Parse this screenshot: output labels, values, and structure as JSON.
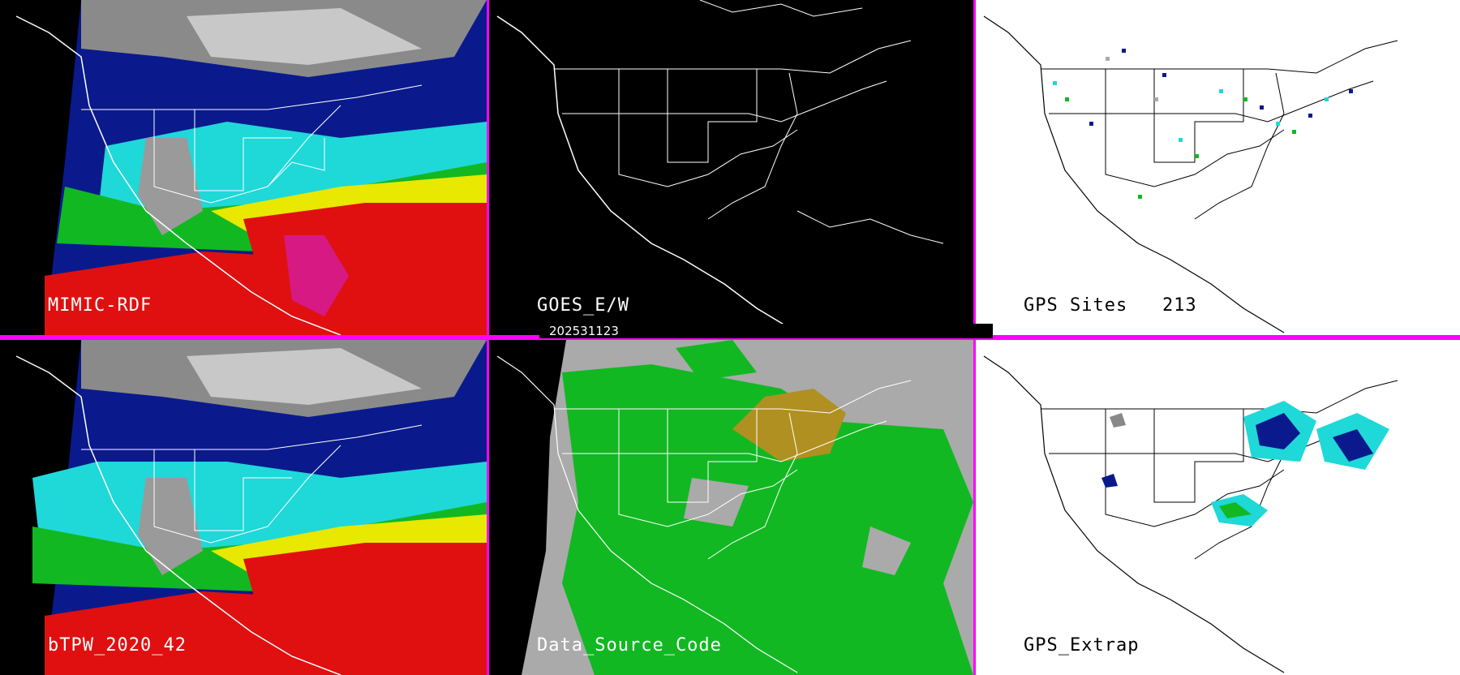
{
  "timestamp": "202531123",
  "colors": {
    "divider": "#ff00ff",
    "map_lines": "#ffffff",
    "map_lines_light": "#000000"
  },
  "panels": [
    {
      "id": "mimic",
      "label": "MIMIC-RDF",
      "style": "tpw"
    },
    {
      "id": "goes",
      "label": "GOES_E/W",
      "style": "black"
    },
    {
      "id": "gps_sites",
      "label": "GPS Sites   213",
      "style": "white-sites"
    },
    {
      "id": "btpw",
      "label": "bTPW_2020_42",
      "style": "tpw"
    },
    {
      "id": "dsc",
      "label": "Data_Source_Code",
      "style": "source-code"
    },
    {
      "id": "gps_extrap",
      "label": "GPS_Extrap",
      "style": "white-extrap"
    }
  ]
}
